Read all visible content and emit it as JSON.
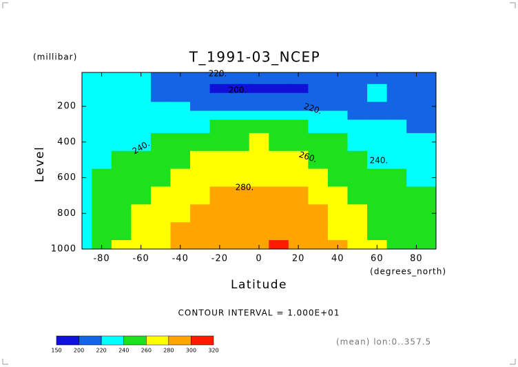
{
  "chart_data": {
    "type": "contour",
    "title": "T_1991-03_NCEP",
    "y_unit_label": "(millibar)",
    "ylabel": "Level",
    "xlabel": "Latitude",
    "x_unit_label": "(degrees_north)",
    "annotation": "CONTOUR INTERVAL = 1.000E+01",
    "subtitle": "(mean) lon:0..357.5",
    "x": [
      -90,
      -80,
      -70,
      -60,
      -50,
      -40,
      -30,
      -20,
      -10,
      0,
      10,
      20,
      30,
      40,
      50,
      60,
      70,
      80,
      90
    ],
    "levels": [
      10,
      50,
      100,
      150,
      200,
      250,
      300,
      400,
      500,
      600,
      700,
      800,
      900,
      1000
    ],
    "z": [
      [
        225,
        225,
        224,
        221,
        215,
        214,
        214,
        214,
        214,
        214,
        214,
        214,
        214,
        214,
        214,
        214,
        214,
        214,
        214
      ],
      [
        226,
        226,
        225,
        222,
        215,
        212,
        210,
        205,
        204,
        204,
        204,
        205,
        210,
        212,
        214,
        216,
        215,
        215,
        215
      ],
      [
        226,
        226,
        225,
        222,
        216,
        209,
        205,
        198,
        196,
        196,
        196,
        198,
        205,
        210,
        215,
        222,
        216,
        215,
        215
      ],
      [
        227,
        227,
        226,
        224,
        219,
        214,
        211,
        209,
        208,
        208,
        208,
        209,
        212,
        214,
        216,
        221,
        216,
        215,
        215
      ],
      [
        228,
        228,
        227,
        225,
        223,
        221,
        219,
        218,
        218,
        218,
        218,
        218,
        219,
        217,
        216,
        215,
        215,
        215,
        215
      ],
      [
        229,
        229,
        229,
        229,
        229,
        228,
        227,
        226,
        225,
        224,
        224,
        224,
        224,
        221,
        218,
        217,
        216,
        216,
        216
      ],
      [
        230,
        231,
        232,
        233,
        235,
        237,
        239,
        241,
        241,
        241,
        241,
        241,
        238,
        232,
        226,
        222,
        220,
        219,
        219
      ],
      [
        234,
        236,
        238,
        239,
        245,
        250,
        254,
        257,
        259,
        260,
        259,
        256,
        250,
        244,
        236,
        231,
        229,
        226,
        225
      ],
      [
        237,
        238,
        240,
        246,
        252,
        258,
        263,
        266,
        268,
        268,
        267,
        264,
        258,
        252,
        244,
        238,
        235,
        233,
        232
      ],
      [
        238,
        240,
        246,
        252,
        259,
        265,
        270,
        273,
        275,
        275,
        275,
        272,
        266,
        259,
        251,
        245,
        240,
        238,
        237
      ],
      [
        239,
        244,
        250,
        256,
        264,
        271,
        277,
        281,
        283,
        283,
        283,
        280,
        274,
        267,
        258,
        251,
        246,
        243,
        242
      ],
      [
        239,
        247,
        254,
        261,
        270,
        277,
        283,
        287,
        289,
        289,
        289,
        286,
        280,
        272,
        263,
        256,
        251,
        248,
        247
      ],
      [
        239,
        249,
        257,
        265,
        275,
        282,
        287,
        291,
        293,
        294,
        295,
        292,
        286,
        277,
        266,
        258,
        254,
        250,
        248
      ],
      [
        239,
        250,
        260,
        268,
        278,
        285,
        290,
        294,
        296,
        297,
        301,
        295,
        289,
        280,
        270,
        260,
        255,
        252,
        250
      ]
    ],
    "xlim": [
      -90,
      90
    ],
    "ylim": [
      1000,
      10
    ],
    "xticks": [
      -80,
      -60,
      -40,
      -20,
      0,
      20,
      40,
      60,
      80
    ],
    "yticks": [
      200,
      400,
      600,
      800,
      1000
    ],
    "contour_labels": [
      "220.",
      "200.",
      "220.",
      "240.",
      "260.",
      "240.",
      "280."
    ],
    "colorbar": {
      "levels": [
        150,
        200,
        220,
        240,
        260,
        280,
        300,
        320
      ],
      "colors": [
        "#1010d8",
        "#1464e6",
        "#00ffff",
        "#1ee11e",
        "#ffff00",
        "#ffa500",
        "#ff1a00"
      ]
    }
  }
}
